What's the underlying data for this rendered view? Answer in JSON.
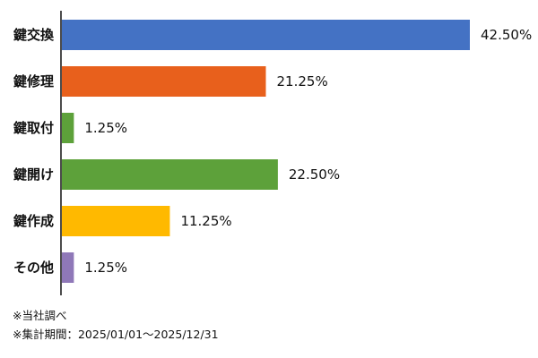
{
  "chart_data": {
    "type": "bar",
    "orientation": "horizontal",
    "title": "",
    "xlabel": "",
    "ylabel": "",
    "xlim": [
      0,
      50
    ],
    "grid": false,
    "legend": "none",
    "categories": [
      "鍵交換",
      "鍵修理",
      "鍵取付",
      "鍵開け",
      "鍵作成",
      "その他"
    ],
    "values": [
      42.5,
      21.25,
      1.25,
      22.5,
      11.25,
      1.25
    ],
    "value_labels": [
      "42.50%",
      "21.25%",
      "1.25%",
      "22.50%",
      "11.25%",
      "1.25%"
    ],
    "colors": [
      "#4472C4",
      "#E8601C",
      "#5DA13A",
      "#5DA13A",
      "#FFB900",
      "#8F78B8"
    ],
    "axis_color": "#111111"
  },
  "footnotes": {
    "source": "※当社調べ",
    "period": "※集計期間：2025/01/01～2025/12/31"
  }
}
